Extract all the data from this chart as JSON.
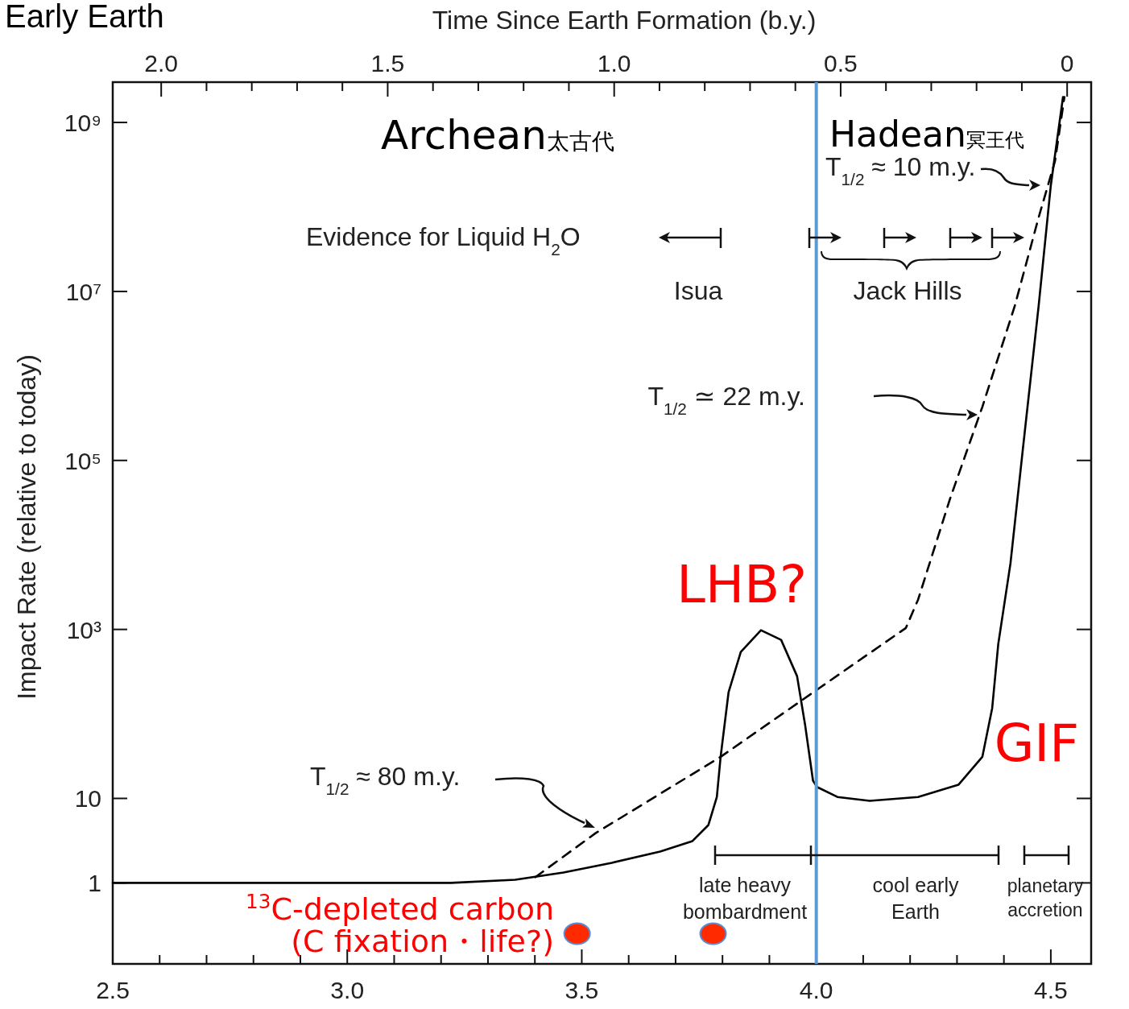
{
  "chart_data": {
    "type": "line",
    "title": "Early Earth",
    "x2label": "Time Since Earth Formation (b.y.)",
    "ylabel": "Impact Rate (relative to today)",
    "log": "y",
    "grid": false,
    "xlim": [
      2.5,
      4.586
    ],
    "xticks": [
      2.5,
      {
        "value": 2.6,
        "label": null
      },
      {
        "value": 2.7,
        "label": null
      },
      {
        "value": 2.8,
        "label": null
      },
      {
        "value": 2.9,
        "label": null
      },
      {
        "value": 3,
        "label": "3.0"
      },
      {
        "value": 3.1,
        "label": null
      },
      {
        "value": 3.2,
        "label": null
      },
      {
        "value": 3.3,
        "label": null
      },
      {
        "value": 3.4,
        "label": null
      },
      3.5,
      {
        "value": 3.6,
        "label": null
      },
      {
        "value": 3.7,
        "label": null
      },
      {
        "value": 3.8,
        "label": null
      },
      {
        "value": 3.9,
        "label": null
      },
      {
        "value": 4,
        "label": "4.0"
      },
      {
        "value": 4.1,
        "label": null
      },
      {
        "value": 4.2,
        "label": null
      },
      {
        "value": 4.3,
        "label": null
      },
      {
        "value": 4.4,
        "label": null
      },
      4.5
    ],
    "x2lim": [
      2.107,
      -0.053
    ],
    "x2ticks": [
      {
        "value": 2,
        "label": "2.0"
      },
      {
        "value": 1.9,
        "label": null
      },
      {
        "value": 1.8,
        "label": null
      },
      {
        "value": 1.7,
        "label": null
      },
      {
        "value": 1.6,
        "label": null
      },
      1.5,
      {
        "value": 1.4,
        "label": null
      },
      {
        "value": 1.3,
        "label": null
      },
      {
        "value": 1.2,
        "label": null
      },
      {
        "value": 1.1,
        "label": null
      },
      {
        "value": 1,
        "label": "1.0"
      },
      {
        "value": 0.9,
        "label": null
      },
      {
        "value": 0.8,
        "label": null
      },
      {
        "value": 0.7,
        "label": null
      },
      {
        "value": 0.6,
        "label": null
      },
      0.5,
      {
        "value": 0.4,
        "label": null
      },
      {
        "value": 0.3,
        "label": null
      },
      {
        "value": 0.2,
        "label": null
      },
      {
        "value": 0.1,
        "label": null
      },
      0
    ],
    "ylim": [
      0.11,
      3000000000
    ],
    "yticks": [
      1,
      10,
      {
        "value": 1000,
        "label": "10³"
      },
      {
        "value": 100000,
        "label": "10⁵"
      },
      {
        "value": 10000000,
        "label": "10⁷"
      },
      {
        "value": 1000000000,
        "label": "10⁹"
      }
    ],
    "series": [
      {
        "color": "#000000",
        "line_style": "solid",
        "x": [
          2.5,
          2.946,
          3.221,
          3.358,
          3.461,
          3.564,
          3.667,
          3.736,
          3.77,
          3.788,
          3.796,
          3.813,
          3.839,
          3.882,
          3.925,
          3.959,
          3.976,
          3.993,
          4.002,
          4.045,
          4.114,
          4.217,
          4.303,
          4.354,
          4.375,
          4.388,
          4.414,
          4.44,
          4.474,
          4.5,
          4.526
        ],
        "values": [
          1,
          1,
          1,
          1.09,
          1.33,
          1.73,
          2.35,
          3.13,
          4.85,
          10.4,
          31,
          181,
          541,
          977,
          752,
          280,
          75,
          16.2,
          13.6,
          10.4,
          9.36,
          10.4,
          14.5,
          31,
          117,
          674,
          6040,
          130000,
          6700000,
          180000000,
          2000000000
        ]
      },
      {
        "color": "#000000",
        "line_style": "dashed",
        "x": [
          3.401,
          3.53,
          3.796,
          3.994,
          4.191,
          4.217,
          4.285,
          4.354,
          4.423,
          4.474,
          4.509,
          4.529
        ],
        "values": [
          1.17,
          3.9,
          31,
          181,
          1040,
          2250,
          35000,
          430000,
          6700000,
          75000000,
          350000000,
          2000000000
        ]
      },
      {
        "type": "scatter",
        "color": "#ff2a00",
        "marker": "circle",
        "x": [
          3.49,
          3.78
        ],
        "values": [
          0.25,
          0.25
        ]
      }
    ],
    "ref_lines": [
      {
        "axis": "x",
        "value": 4.0,
        "color": "#5b9bd5"
      }
    ],
    "annotations": [
      "Archean太古代",
      "Hadean冥王代",
      "T$_{1/2}$ ≈ 10 m.y.",
      "Evidence for Liquid H$_{2}$O",
      "Isua",
      "Jack Hills",
      "T$_{1/2}$ ≃ 22 m.y.",
      "LHB?",
      "GIF",
      "T$_{1/2}$ ≈ 80 m.y.",
      "late heavy\nbombardment",
      "cool early\nEarth",
      "planetary\naccretion",
      "$^{13}$C-depleted carbon",
      "(C fixation・life?)"
    ]
  }
}
